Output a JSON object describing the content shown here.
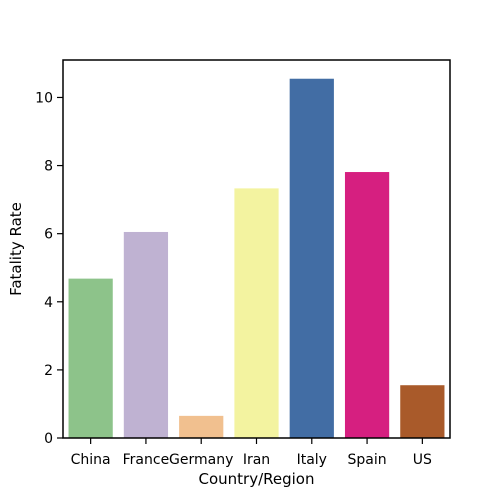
{
  "chart_data": {
    "type": "bar",
    "title": "",
    "xlabel": "Country/Region",
    "ylabel": "Fatality Rate",
    "categories": [
      "China",
      "France",
      "Germany",
      "Iran",
      "Italy",
      "Spain",
      "US"
    ],
    "values": [
      4.68,
      6.05,
      0.65,
      7.33,
      10.55,
      7.81,
      1.55
    ],
    "colors": [
      "#8dc38a",
      "#bfb2d2",
      "#f1c08f",
      "#f3f3a0",
      "#426da4",
      "#d61f80",
      "#a95a2a"
    ],
    "ylim": [
      0,
      11.1
    ],
    "yticks": [
      0,
      2,
      4,
      6,
      8,
      10
    ],
    "grid": false,
    "legend": false
  }
}
